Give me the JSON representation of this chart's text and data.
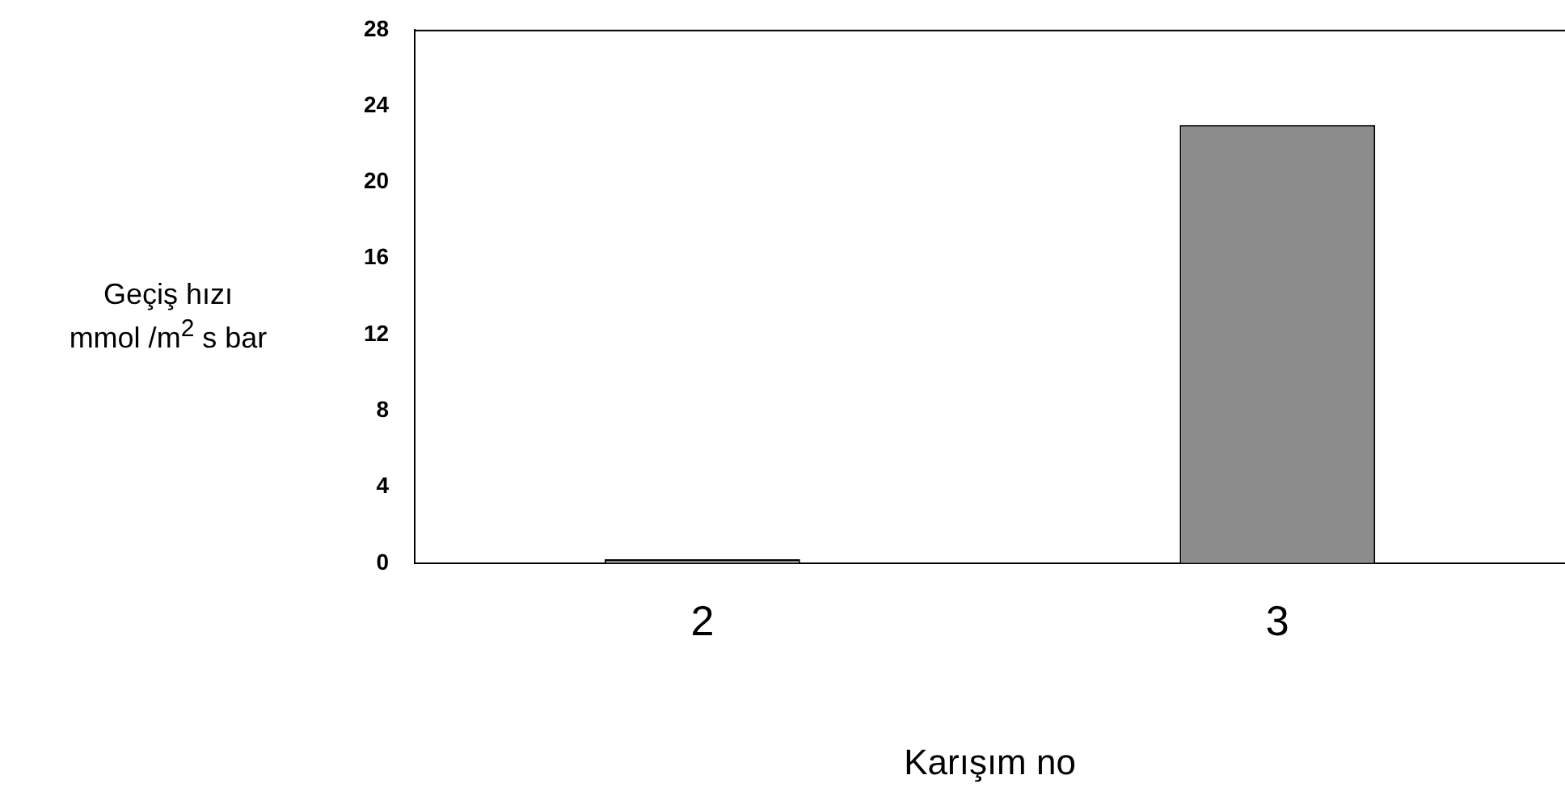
{
  "chart_data": {
    "type": "bar",
    "xlabel": "Karışım no",
    "ylabel": "Geçiş hızı\nmmol /m$^{2}$ s bar",
    "categories": [
      "2",
      "3"
    ],
    "values": [
      0.2,
      23
    ],
    "color": "#8c8c8c",
    "ylim": [
      0,
      28
    ],
    "yticks": [
      0,
      4,
      8,
      12,
      16,
      20,
      24,
      28
    ],
    "grid": false,
    "legend": false
  }
}
